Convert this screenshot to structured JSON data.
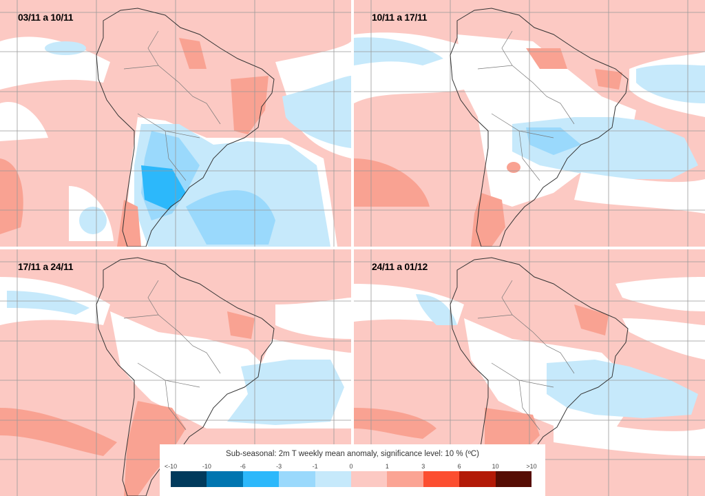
{
  "panels": [
    {
      "title": "03/11 a 10/11"
    },
    {
      "title": "10/11 a 17/11"
    },
    {
      "title": "17/11 a 24/11"
    },
    {
      "title": "24/11 a 01/12"
    }
  ],
  "legend": {
    "title": "Sub-seasonal: 2m T weekly mean anomaly, significance level: 10 % (ºC)",
    "ticks": [
      "<-10",
      "-10",
      "-6",
      "-3",
      "-1",
      "0",
      "1",
      "3",
      "6",
      "10",
      ">10"
    ],
    "colors": [
      "#003a5c",
      "#0075b0",
      "#2cb8fb",
      "#9ad9fc",
      "#c6e9fb",
      "#fcc9c3",
      "#fba494",
      "#fc4e30",
      "#b31a07",
      "#560d04"
    ]
  },
  "colors": {
    "anomaly_pos_1": "#fcc9c3",
    "anomaly_pos_2": "#f9a292",
    "neutral": "#ffffff",
    "anomaly_neg_1": "#c6e9fb",
    "anomaly_neg_2": "#9ad9fc",
    "anomaly_neg_3": "#2cb8fb"
  }
}
